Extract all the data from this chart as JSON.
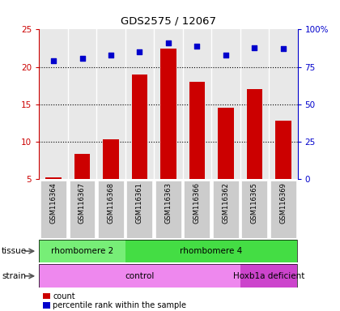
{
  "title": "GDS2575 / 12067",
  "samples": [
    "GSM116364",
    "GSM116367",
    "GSM116368",
    "GSM116361",
    "GSM116363",
    "GSM116366",
    "GSM116362",
    "GSM116365",
    "GSM116369"
  ],
  "counts": [
    5.2,
    8.3,
    10.3,
    19.0,
    22.5,
    18.0,
    14.5,
    17.0,
    12.8
  ],
  "percentiles": [
    79,
    81,
    83,
    85,
    91,
    89,
    83,
    88,
    87
  ],
  "ylim_left": [
    5,
    25
  ],
  "ylim_right": [
    0,
    100
  ],
  "yticks_left": [
    5,
    10,
    15,
    20,
    25
  ],
  "yticks_right": [
    0,
    25,
    50,
    75,
    100
  ],
  "bar_color": "#cc0000",
  "dot_color": "#0000cc",
  "tissue_groups": [
    {
      "label": "rhombomere 2",
      "start": 0,
      "end": 3,
      "color": "#77ee77"
    },
    {
      "label": "rhombomere 4",
      "start": 3,
      "end": 9,
      "color": "#44dd44"
    }
  ],
  "strain_groups": [
    {
      "label": "control",
      "start": 0,
      "end": 7,
      "color": "#ee88ee"
    },
    {
      "label": "Hoxb1a deficient",
      "start": 7,
      "end": 9,
      "color": "#cc44cc"
    }
  ],
  "tissue_label": "tissue",
  "strain_label": "strain",
  "legend_count": "count",
  "legend_percentile": "percentile rank within the sample",
  "left_axis_color": "#cc0000",
  "right_axis_color": "#0000cc",
  "bg_color": "#ffffff",
  "plot_bg": "#e8e8e8",
  "sample_bg": "#cccccc"
}
